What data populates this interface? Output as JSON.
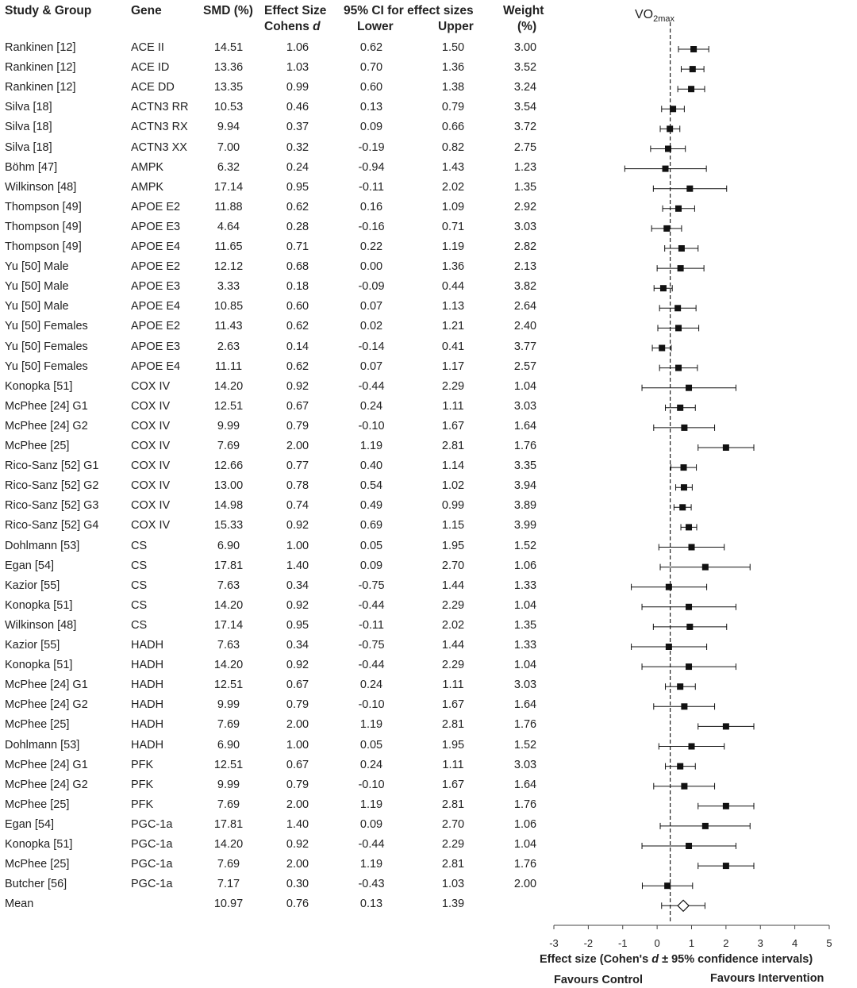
{
  "headers": {
    "study": "Study & Group",
    "gene": "Gene",
    "smd": "SMD (%)",
    "es_line1": "Effect Size",
    "es_line2_prefix": "Cohens ",
    "es_line2_d": "d",
    "ci_title": "95% CI for effect sizes",
    "lower": "Lower",
    "upper": "Upper",
    "weight_line1": "Weight",
    "weight_line2": "(%)"
  },
  "chart_data": {
    "type": "forest",
    "title": "VO2max",
    "title_main": "VO",
    "title_sub": "2max",
    "xlabel_prefix": "Effect size (Cohen's ",
    "xlabel_d": "d",
    "xlabel_suffix": " ± 95% confidence intervals)",
    "favours_left": "Favours Control",
    "favours_right": "Favours Intervention",
    "xlim": [
      -3,
      5
    ],
    "xticks": [
      "-3",
      "-2",
      "-1",
      "0",
      "1",
      "2",
      "3",
      "4",
      "5"
    ],
    "reference_line": 0.38,
    "reference_style": "dashed",
    "rows": [
      {
        "study": "Rankinen [12]",
        "gene": "ACE II",
        "smd": "14.51",
        "es": "1.06",
        "lower": "0.62",
        "upper": "1.50",
        "weight": "3.00"
      },
      {
        "study": "Rankinen [12]",
        "gene": "ACE ID",
        "smd": "13.36",
        "es": "1.03",
        "lower": "0.70",
        "upper": "1.36",
        "weight": "3.52"
      },
      {
        "study": "Rankinen [12]",
        "gene": "ACE DD",
        "smd": "13.35",
        "es": "0.99",
        "lower": "0.60",
        "upper": "1.38",
        "weight": "3.24"
      },
      {
        "study": "Silva [18]",
        "gene": "ACTN3 RR",
        "smd": "10.53",
        "es": "0.46",
        "lower": "0.13",
        "upper": "0.79",
        "weight": "3.54"
      },
      {
        "study": "Silva [18]",
        "gene": "ACTN3 RX",
        "smd": "9.94",
        "es": "0.37",
        "lower": "0.09",
        "upper": "0.66",
        "weight": "3.72"
      },
      {
        "study": "Silva [18]",
        "gene": "ACTN3 XX",
        "smd": "7.00",
        "es": "0.32",
        "lower": "-0.19",
        "upper": "0.82",
        "weight": "2.75"
      },
      {
        "study": "Böhm [47]",
        "gene": "AMPK",
        "smd": "6.32",
        "es": "0.24",
        "lower": "-0.94",
        "upper": "1.43",
        "weight": "1.23"
      },
      {
        "study": "Wilkinson [48]",
        "gene": "AMPK",
        "smd": "17.14",
        "es": "0.95",
        "lower": "-0.11",
        "upper": "2.02",
        "weight": "1.35"
      },
      {
        "study": "Thompson [49]",
        "gene": "APOE E2",
        "smd": "11.88",
        "es": "0.62",
        "lower": "0.16",
        "upper": "1.09",
        "weight": "2.92"
      },
      {
        "study": "Thompson [49]",
        "gene": "APOE E3",
        "smd": "4.64",
        "es": "0.28",
        "lower": "-0.16",
        "upper": "0.71",
        "weight": "3.03"
      },
      {
        "study": "Thompson [49]",
        "gene": "APOE E4",
        "smd": "11.65",
        "es": "0.71",
        "lower": "0.22",
        "upper": "1.19",
        "weight": "2.82"
      },
      {
        "study": "Yu [50] Male",
        "gene": "APOE E2",
        "smd": "12.12",
        "es": "0.68",
        "lower": "0.00",
        "upper": "1.36",
        "weight": "2.13"
      },
      {
        "study": "Yu [50] Male",
        "gene": "APOE E3",
        "smd": "3.33",
        "es": "0.18",
        "lower": "-0.09",
        "upper": "0.44",
        "weight": "3.82"
      },
      {
        "study": "Yu [50] Male",
        "gene": "APOE E4",
        "smd": "10.85",
        "es": "0.60",
        "lower": "0.07",
        "upper": "1.13",
        "weight": "2.64"
      },
      {
        "study": "Yu [50] Females",
        "gene": "APOE E2",
        "smd": "11.43",
        "es": "0.62",
        "lower": "0.02",
        "upper": "1.21",
        "weight": "2.40"
      },
      {
        "study": "Yu [50] Females",
        "gene": "APOE E3",
        "smd": "2.63",
        "es": "0.14",
        "lower": "-0.14",
        "upper": "0.41",
        "weight": "3.77"
      },
      {
        "study": "Yu [50] Females",
        "gene": "APOE E4",
        "smd": "11.11",
        "es": "0.62",
        "lower": "0.07",
        "upper": "1.17",
        "weight": "2.57"
      },
      {
        "study": "Konopka [51]",
        "gene": "COX IV",
        "smd": "14.20",
        "es": "0.92",
        "lower": "-0.44",
        "upper": "2.29",
        "weight": "1.04"
      },
      {
        "study": "McPhee [24] G1",
        "gene": "COX IV",
        "smd": "12.51",
        "es": "0.67",
        "lower": "0.24",
        "upper": "1.11",
        "weight": "3.03"
      },
      {
        "study": "McPhee [24] G2",
        "gene": "COX IV",
        "smd": "9.99",
        "es": "0.79",
        "lower": "-0.10",
        "upper": "1.67",
        "weight": "1.64"
      },
      {
        "study": "McPhee [25]",
        "gene": "COX IV",
        "smd": "7.69",
        "es": "2.00",
        "lower": "1.19",
        "upper": "2.81",
        "weight": "1.76"
      },
      {
        "study": "Rico-Sanz [52] G1",
        "gene": "COX IV",
        "smd": "12.66",
        "es": "0.77",
        "lower": "0.40",
        "upper": "1.14",
        "weight": "3.35"
      },
      {
        "study": "Rico-Sanz [52] G2",
        "gene": "COX IV",
        "smd": "13.00",
        "es": "0.78",
        "lower": "0.54",
        "upper": "1.02",
        "weight": "3.94"
      },
      {
        "study": "Rico-Sanz [52] G3",
        "gene": "COX IV",
        "smd": "14.98",
        "es": "0.74",
        "lower": "0.49",
        "upper": "0.99",
        "weight": "3.89"
      },
      {
        "study": "Rico-Sanz [52] G4",
        "gene": "COX IV",
        "smd": "15.33",
        "es": "0.92",
        "lower": "0.69",
        "upper": "1.15",
        "weight": "3.99"
      },
      {
        "study": "Dohlmann [53]",
        "gene": "CS",
        "smd": "6.90",
        "es": "1.00",
        "lower": "0.05",
        "upper": "1.95",
        "weight": "1.52"
      },
      {
        "study": "Egan [54]",
        "gene": "CS",
        "smd": "17.81",
        "es": "1.40",
        "lower": "0.09",
        "upper": "2.70",
        "weight": "1.06"
      },
      {
        "study": "Kazior [55]",
        "gene": "CS",
        "smd": "7.63",
        "es": "0.34",
        "lower": "-0.75",
        "upper": "1.44",
        "weight": "1.33"
      },
      {
        "study": "Konopka [51]",
        "gene": "CS",
        "smd": "14.20",
        "es": "0.92",
        "lower": "-0.44",
        "upper": "2.29",
        "weight": "1.04"
      },
      {
        "study": "Wilkinson [48]",
        "gene": "CS",
        "smd": "17.14",
        "es": "0.95",
        "lower": "-0.11",
        "upper": "2.02",
        "weight": "1.35"
      },
      {
        "study": "Kazior [55]",
        "gene": "HADH",
        "smd": "7.63",
        "es": "0.34",
        "lower": "-0.75",
        "upper": "1.44",
        "weight": "1.33"
      },
      {
        "study": "Konopka [51]",
        "gene": "HADH",
        "smd": "14.20",
        "es": "0.92",
        "lower": "-0.44",
        "upper": "2.29",
        "weight": "1.04"
      },
      {
        "study": "McPhee [24] G1",
        "gene": "HADH",
        "smd": "12.51",
        "es": "0.67",
        "lower": "0.24",
        "upper": "1.11",
        "weight": "3.03"
      },
      {
        "study": "McPhee [24] G2",
        "gene": "HADH",
        "smd": "9.99",
        "es": "0.79",
        "lower": "-0.10",
        "upper": "1.67",
        "weight": "1.64"
      },
      {
        "study": "McPhee [25]",
        "gene": "HADH",
        "smd": "7.69",
        "es": "2.00",
        "lower": "1.19",
        "upper": "2.81",
        "weight": "1.76"
      },
      {
        "study": "Dohlmann [53]",
        "gene": "HADH",
        "smd": "6.90",
        "es": "1.00",
        "lower": "0.05",
        "upper": "1.95",
        "weight": "1.52"
      },
      {
        "study": "McPhee [24] G1",
        "gene": "PFK",
        "smd": "12.51",
        "es": "0.67",
        "lower": "0.24",
        "upper": "1.11",
        "weight": "3.03"
      },
      {
        "study": "McPhee [24] G2",
        "gene": "PFK",
        "smd": "9.99",
        "es": "0.79",
        "lower": "-0.10",
        "upper": "1.67",
        "weight": "1.64"
      },
      {
        "study": "McPhee [25]",
        "gene": "PFK",
        "smd": "7.69",
        "es": "2.00",
        "lower": "1.19",
        "upper": "2.81",
        "weight": "1.76"
      },
      {
        "study": "Egan [54]",
        "gene": "PGC-1a",
        "smd": "17.81",
        "es": "1.40",
        "lower": "0.09",
        "upper": "2.70",
        "weight": "1.06"
      },
      {
        "study": "Konopka [51]",
        "gene": "PGC-1a",
        "smd": "14.20",
        "es": "0.92",
        "lower": "-0.44",
        "upper": "2.29",
        "weight": "1.04"
      },
      {
        "study": "McPhee [25]",
        "gene": "PGC-1a",
        "smd": "7.69",
        "es": "2.00",
        "lower": "1.19",
        "upper": "2.81",
        "weight": "1.76"
      },
      {
        "study": "Butcher [56]",
        "gene": "PGC-1a",
        "smd": "7.17",
        "es": "0.30",
        "lower": "-0.43",
        "upper": "1.03",
        "weight": "2.00"
      }
    ],
    "mean": {
      "study": "Mean",
      "gene": "",
      "smd": "10.97",
      "es": "0.76",
      "lower": "0.13",
      "upper": "1.39",
      "weight": ""
    }
  }
}
